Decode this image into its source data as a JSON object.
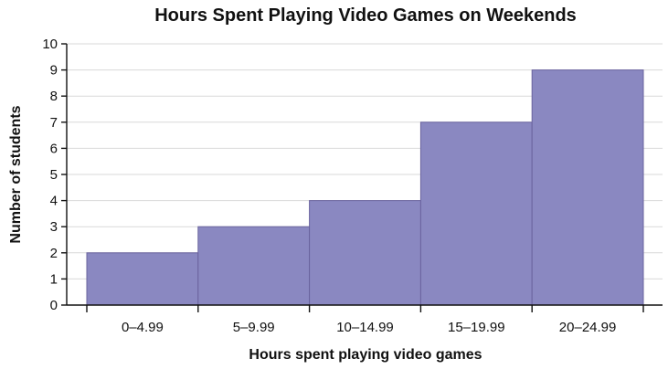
{
  "chart_data": {
    "type": "bar",
    "title": "Hours Spent Playing Video Games on Weekends",
    "xlabel": "Hours spent playing video games",
    "ylabel": "Number of students",
    "categories": [
      "0–4.99",
      "5–9.99",
      "10–14.99",
      "15–19.99",
      "20–24.99"
    ],
    "values": [
      2,
      3,
      4,
      7,
      9
    ],
    "ylim": [
      0,
      10
    ],
    "yticks": [
      0,
      1,
      2,
      3,
      4,
      5,
      6,
      7,
      8,
      9,
      10
    ],
    "grid": true,
    "legend": "none",
    "bar_color": "#8a88c1",
    "bar_edge_color": "#6a639e"
  }
}
